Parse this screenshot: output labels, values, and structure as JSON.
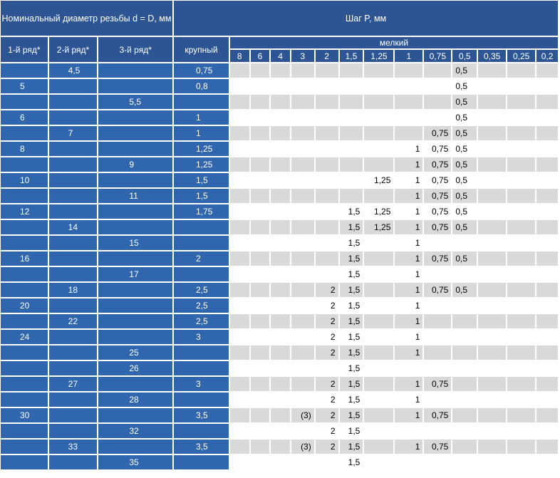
{
  "header": {
    "nominal_diameter": "Номинальный диаметр резьбы d = D, мм",
    "pitch_title": "Шаг P, мм",
    "series_1": "1-й ряд*",
    "series_2": "2-й ряд*",
    "series_3": "3-й ряд*",
    "coarse": "крупный",
    "fine": "мелкий",
    "fine_pitches": [
      "8",
      "6",
      "4",
      "3",
      "2",
      "1,5",
      "1,25",
      "1",
      "0,75",
      "0,5",
      "0,35",
      "0,25",
      "0,2"
    ]
  },
  "rows": [
    {
      "s1": "",
      "s2": "4,5",
      "s3": "",
      "coarse": "0,75",
      "fine": [
        "",
        "",
        "",
        "",
        "",
        "",
        "",
        "",
        "",
        "0,5",
        "",
        "",
        ""
      ]
    },
    {
      "s1": "5",
      "s2": "",
      "s3": "",
      "coarse": "0,8",
      "fine": [
        "",
        "",
        "",
        "",
        "",
        "",
        "",
        "",
        "",
        "0,5",
        "",
        "",
        ""
      ]
    },
    {
      "s1": "",
      "s2": "",
      "s3": "5,5",
      "coarse": "",
      "fine": [
        "",
        "",
        "",
        "",
        "",
        "",
        "",
        "",
        "",
        "0,5",
        "",
        "",
        ""
      ]
    },
    {
      "s1": "6",
      "s2": "",
      "s3": "",
      "coarse": "1",
      "fine": [
        "",
        "",
        "",
        "",
        "",
        "",
        "",
        "",
        "",
        "0,5",
        "",
        "",
        ""
      ]
    },
    {
      "s1": "",
      "s2": "7",
      "s3": "",
      "coarse": "1",
      "fine": [
        "",
        "",
        "",
        "",
        "",
        "",
        "",
        "",
        "0,75",
        "0,5",
        "",
        "",
        ""
      ]
    },
    {
      "s1": "8",
      "s2": "",
      "s3": "",
      "coarse": "1,25",
      "fine": [
        "",
        "",
        "",
        "",
        "",
        "",
        "",
        "1",
        "0,75",
        "0,5",
        "",
        "",
        ""
      ]
    },
    {
      "s1": "",
      "s2": "",
      "s3": "9",
      "coarse": "1,25",
      "fine": [
        "",
        "",
        "",
        "",
        "",
        "",
        "",
        "1",
        "0,75",
        "0,5",
        "",
        "",
        ""
      ]
    },
    {
      "s1": "10",
      "s2": "",
      "s3": "",
      "coarse": "1,5",
      "fine": [
        "",
        "",
        "",
        "",
        "",
        "",
        "1,25",
        "1",
        "0,75",
        "0,5",
        "",
        "",
        ""
      ]
    },
    {
      "s1": "",
      "s2": "",
      "s3": "11",
      "coarse": "1,5",
      "fine": [
        "",
        "",
        "",
        "",
        "",
        "",
        "",
        "1",
        "0,75",
        "0,5",
        "",
        "",
        ""
      ]
    },
    {
      "s1": "12",
      "s2": "",
      "s3": "",
      "coarse": "1,75",
      "fine": [
        "",
        "",
        "",
        "",
        "",
        "1,5",
        "1,25",
        "1",
        "0,75",
        "0,5",
        "",
        "",
        ""
      ]
    },
    {
      "s1": "",
      "s2": "14",
      "s3": "",
      "coarse": "",
      "fine": [
        "",
        "",
        "",
        "",
        "",
        "1,5",
        "1,25",
        "1",
        "0,75",
        "0,5",
        "",
        "",
        ""
      ]
    },
    {
      "s1": "",
      "s2": "",
      "s3": "15",
      "coarse": "",
      "fine": [
        "",
        "",
        "",
        "",
        "",
        "1,5",
        "",
        "1",
        "",
        "",
        "",
        "",
        ""
      ]
    },
    {
      "s1": "16",
      "s2": "",
      "s3": "",
      "coarse": "2",
      "fine": [
        "",
        "",
        "",
        "",
        "",
        "1,5",
        "",
        "1",
        "0,75",
        "0,5",
        "",
        "",
        ""
      ]
    },
    {
      "s1": "",
      "s2": "",
      "s3": "17",
      "coarse": "",
      "fine": [
        "",
        "",
        "",
        "",
        "",
        "1,5",
        "",
        "1",
        "",
        "",
        "",
        "",
        ""
      ]
    },
    {
      "s1": "",
      "s2": "18",
      "s3": "",
      "coarse": "2,5",
      "fine": [
        "",
        "",
        "",
        "",
        "2",
        "1,5",
        "",
        "1",
        "0,75",
        "0,5",
        "",
        "",
        ""
      ]
    },
    {
      "s1": "20",
      "s2": "",
      "s3": "",
      "coarse": "2,5",
      "fine": [
        "",
        "",
        "",
        "",
        "2",
        "1,5",
        "",
        "1",
        "",
        "",
        "",
        "",
        ""
      ]
    },
    {
      "s1": "",
      "s2": "22",
      "s3": "",
      "coarse": "2,5",
      "fine": [
        "",
        "",
        "",
        "",
        "2",
        "1,5",
        "",
        "1",
        "",
        "",
        "",
        "",
        ""
      ]
    },
    {
      "s1": "24",
      "s2": "",
      "s3": "",
      "coarse": "3",
      "fine": [
        "",
        "",
        "",
        "",
        "2",
        "1,5",
        "",
        "1",
        "",
        "",
        "",
        "",
        ""
      ]
    },
    {
      "s1": "",
      "s2": "",
      "s3": "25",
      "coarse": "",
      "fine": [
        "",
        "",
        "",
        "",
        "2",
        "1,5",
        "",
        "1",
        "",
        "",
        "",
        "",
        ""
      ]
    },
    {
      "s1": "",
      "s2": "",
      "s3": "26",
      "coarse": "",
      "fine": [
        "",
        "",
        "",
        "",
        "",
        "1,5",
        "",
        "",
        "",
        "",
        "",
        "",
        ""
      ]
    },
    {
      "s1": "",
      "s2": "27",
      "s3": "",
      "coarse": "3",
      "fine": [
        "",
        "",
        "",
        "",
        "2",
        "1,5",
        "",
        "1",
        "0,75",
        "",
        "",
        "",
        ""
      ]
    },
    {
      "s1": "",
      "s2": "",
      "s3": "28",
      "coarse": "",
      "fine": [
        "",
        "",
        "",
        "",
        "2",
        "1,5",
        "",
        "1",
        "",
        "",
        "",
        "",
        ""
      ]
    },
    {
      "s1": "30",
      "s2": "",
      "s3": "",
      "coarse": "3,5",
      "fine": [
        "",
        "",
        "",
        "(3)",
        "2",
        "1,5",
        "",
        "1",
        "0,75",
        "",
        "",
        "",
        ""
      ]
    },
    {
      "s1": "",
      "s2": "",
      "s3": "32",
      "coarse": "",
      "fine": [
        "",
        "",
        "",
        "",
        "2",
        "1,5",
        "",
        "",
        "",
        "",
        "",
        "",
        ""
      ]
    },
    {
      "s1": "",
      "s2": "33",
      "s3": "",
      "coarse": "3,5",
      "fine": [
        "",
        "",
        "",
        "(3)",
        "2",
        "1,5",
        "",
        "1",
        "0,75",
        "",
        "",
        "",
        ""
      ]
    },
    {
      "s1": "",
      "s2": "",
      "s3": "35",
      "coarse": "",
      "fine": [
        "",
        "",
        "",
        "",
        "",
        "1,5",
        "",
        "",
        "",
        "",
        "",
        "",
        ""
      ]
    }
  ],
  "colors": {
    "header_bg": "#2d5593",
    "diameter_bg": "#2f66ae",
    "stripe_gray": "#d9d9d9",
    "stripe_white": "#ffffff"
  }
}
